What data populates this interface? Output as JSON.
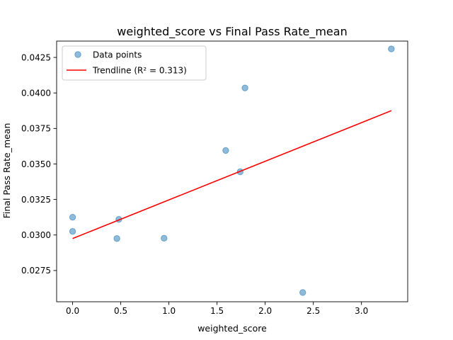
{
  "chart_data": {
    "type": "scatter",
    "title": "weighted_score vs Final Pass Rate_mean",
    "xlabel": "weighted_score",
    "ylabel": "Final Pass Rate_mean",
    "xlim": [
      -0.166,
      3.48
    ],
    "ylim": [
      0.0253,
      0.04365
    ],
    "xticks": [
      0.0,
      0.5,
      1.0,
      1.5,
      2.0,
      2.5,
      3.0
    ],
    "xtick_labels": [
      "0.0",
      "0.5",
      "1.0",
      "1.5",
      "2.0",
      "2.5",
      "3.0"
    ],
    "yticks": [
      0.0275,
      0.03,
      0.0325,
      0.035,
      0.0375,
      0.04,
      0.0425
    ],
    "ytick_labels": [
      "0.0275",
      "0.0300",
      "0.0325",
      "0.0350",
      "0.0375",
      "0.0400",
      "0.0425"
    ],
    "grid": false,
    "legend_position": "top-left",
    "series": [
      {
        "name": "Data points",
        "kind": "scatter",
        "color": "#1f77b4",
        "x": [
          0.0,
          0.0,
          0.46,
          0.48,
          0.95,
          1.59,
          1.74,
          1.79,
          2.39,
          3.31
        ],
        "y": [
          0.03125,
          0.03025,
          0.02975,
          0.0311,
          0.02977,
          0.03595,
          0.03445,
          0.04035,
          0.02595,
          0.0431
        ]
      },
      {
        "name": "Trendline (R² = 0.313)",
        "kind": "line",
        "color": "#ff0000",
        "x": [
          0.0,
          3.31
        ],
        "y": [
          0.02975,
          0.03875
        ]
      }
    ]
  }
}
